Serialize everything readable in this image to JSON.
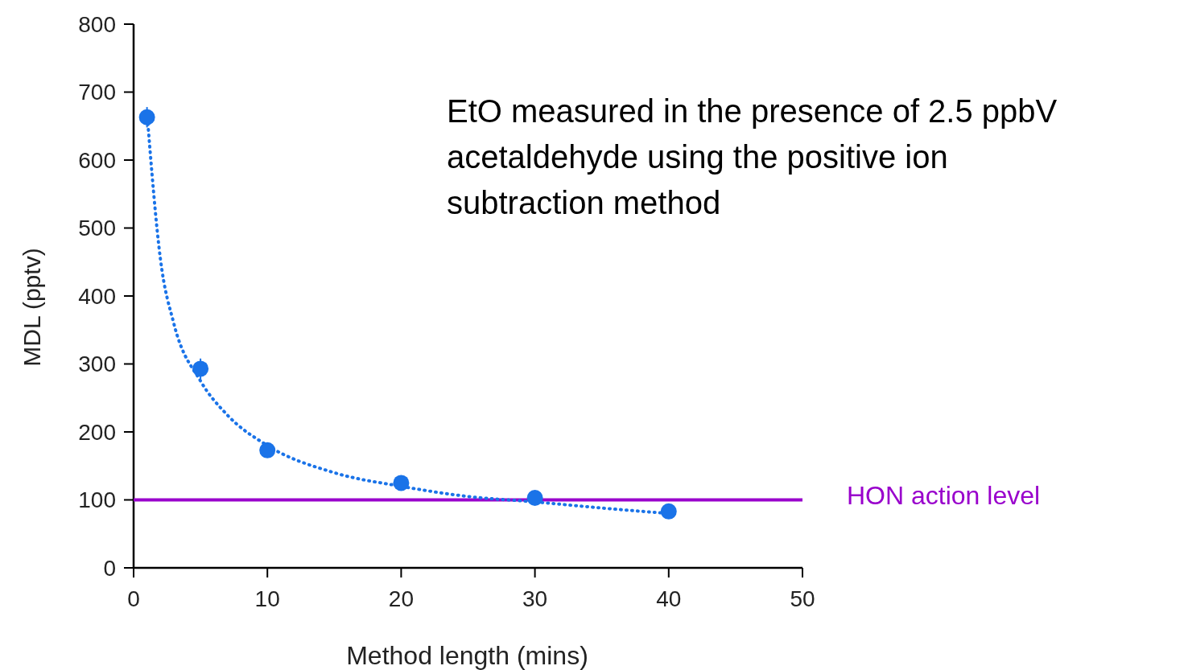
{
  "chart_data": {
    "type": "scatter",
    "xlabel": "Method length (mins)",
    "ylabel": "MDL (pptv)",
    "xlim": [
      0,
      50
    ],
    "xticks": [
      0,
      10,
      20,
      30,
      40,
      50
    ],
    "ylim": [
      0,
      800
    ],
    "yticks": [
      0,
      100,
      200,
      300,
      400,
      500,
      600,
      700,
      800
    ],
    "grid": false,
    "marker": "circle",
    "series": [
      {
        "color": "#1a73e8",
        "x": [
          1,
          5,
          10,
          20,
          30,
          40
        ],
        "values": [
          663,
          293,
          173,
          125,
          103,
          83
        ],
        "errors": [
          15,
          15,
          null,
          null,
          null,
          null
        ]
      },
      {
        "type": "line",
        "color": "#1a73e8",
        "line_style": "dotted",
        "marker": "none",
        "x": [
          1,
          2,
          3,
          5,
          7,
          10,
          15,
          20,
          25,
          30,
          35,
          40
        ],
        "values": [
          670,
          455,
          360,
          275,
          225,
          180,
          140,
          120,
          105,
          97,
          88,
          80
        ]
      }
    ],
    "ref_lines": [
      {
        "axis": "y",
        "value": 100,
        "label": "HON action level",
        "color": "#9900cc"
      }
    ],
    "annotations": [
      "EtO measured in the presence of 2.5 ppbV acetaldehyde using the positive ion subtraction method"
    ]
  }
}
